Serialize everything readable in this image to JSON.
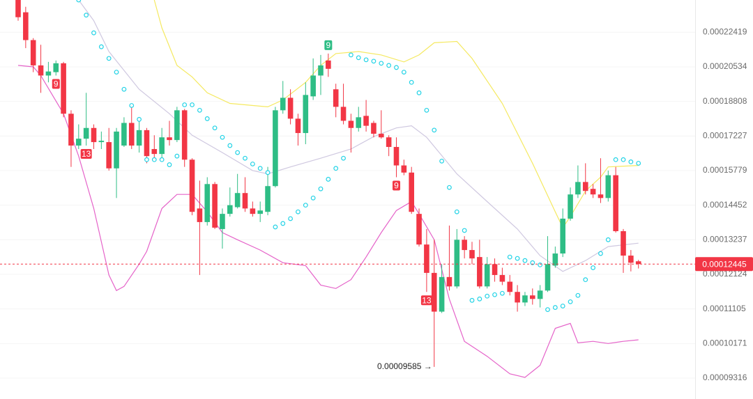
{
  "chart_data": {
    "type": "candlestick",
    "ylim": [
      8.835e-05,
      0.0002433
    ],
    "log_scale": true,
    "grid": true,
    "yticks": [
      0.00022419,
      0.00020534,
      0.00018808,
      0.00017227,
      0.00015779,
      0.00014452,
      0.00013237,
      0.00012124,
      0.00011105,
      0.00010171,
      9.316e-05
    ],
    "up_color": "#2ebd85",
    "down_color": "#f23645",
    "candles": {
      "open": [
        0.0002433,
        0.00023583,
        0.00021976,
        0.00020608,
        0.00020085,
        0.00020258,
        0.00020719,
        0.00018228,
        0.00016813,
        0.00017109,
        0.00017582,
        0.00016961,
        0.00016961,
        0.00015868,
        0.00016813,
        0.00017808,
        0.00016813,
        0.00017485,
        0.00016665,
        0.00016458,
        0.00017168,
        0.0001705,
        0.00018389,
        0.00016222,
        0.00014331,
        0.00013845,
        0.00015248,
        0.00013602,
        0.00014136,
        0.00014379,
        0.00014904,
        0.00014331,
        0.00014136,
        0.00014209,
        0.00015169,
        0.00018389,
        0.00018981,
        0.00018001,
        0.00017356,
        0.0001905,
        0.00020085,
        0.00020866,
        0.00019395,
        0.0001855,
        0.00017905,
        0.00017582,
        0.0001813,
        0.00017808,
        0.00017324,
        0.00017168,
        0.00016754,
        0.00015986,
        0.00015699,
        0.00014136,
        0.00013078,
        0.00012169,
        0.00011029,
        0.00012042,
        0.00011758,
        0.00013237,
        0.00012896,
        0.00012669,
        0.00011758,
        0.00012442,
        0.00012104,
        0.000119,
        0.00011595,
        0.00011288,
        0.00011493,
        0.0001139,
        0.00011635,
        0.00012397,
        0.00012783,
        0.00013966,
        0.00014851,
        0.00015328,
        0.00015063,
        0.00014851,
        0.00014717,
        0.00015593,
        0.00013529,
        0.00012715,
        0.00012533
      ],
      "high": [
        0.0002433,
        0.00023915,
        0.00022086,
        0.00021717,
        0.00020793,
        0.00020866,
        0.00020793,
        0.00018389,
        0.00017743,
        0.00019222,
        0.00017743,
        0.00017421,
        0.00017582,
        0.00017582,
        0.00018066,
        0.00018711,
        0.00018066,
        0.00017582,
        0.00017259,
        0.00017582,
        0.00017905,
        0.0001855,
        0.00018453,
        0.00016281,
        0.00015381,
        0.00015514,
        0.00015328,
        0.00014331,
        0.00015116,
        0.00015646,
        0.00015514,
        0.00014585,
        0.00014585,
        0.00015927,
        0.0001855,
        0.00019809,
        0.00019395,
        0.00018228,
        0.0001974,
        0.00020977,
        0.00021162,
        0.00021236,
        0.00019671,
        0.00019671,
        0.00018228,
        0.0001855,
        0.00018877,
        0.00017905,
        0.00018389,
        0.00017259,
        0.00017168,
        0.00016222,
        0.00015927,
        0.00014331,
        0.00013602,
        0.00013237,
        0.00012442,
        0.00013723,
        0.00013602,
        0.00013359,
        0.00013169,
        0.00013237,
        0.00012669,
        0.00012624,
        0.00012329,
        0.00012104,
        0.00011798,
        0.00011595,
        0.00011697,
        0.00011798,
        0.00013359,
        0.0001301,
        0.00014331,
        0.00015116,
        0.00015986,
        0.00016074,
        0.00015248,
        0.00016281,
        0.00015779,
        0.00015927,
        0.00013602,
        0.00012896,
        0.00012578
      ],
      "low": [
        0.00023085,
        0.00021532,
        0.00020258,
        0.00019222,
        0.0001974,
        0.00020085,
        0.00018066,
        0.00015927,
        0.00016665,
        0.00016813,
        0.00016665,
        0.00016665,
        0.00015779,
        0.00014717,
        0.00016754,
        0.00016665,
        0.00016517,
        0.00016074,
        0.00016222,
        0.00016222,
        0.00016813,
        0.00016961,
        0.00015927,
        0.00014087,
        0.00012104,
        0.00013723,
        0.00013602,
        0.00012942,
        0.00014039,
        0.00014331,
        0.00014209,
        0.00014039,
        0.00013845,
        0.00014087,
        0.00015116,
        0.00018228,
        0.00017743,
        0.00016813,
        0.00016872,
        0.00018877,
        0.00019118,
        0.00020016,
        0.00018066,
        0.00017743,
        0.00016517,
        0.00017421,
        0.00017421,
        0.00017168,
        0.00017109,
        0.00016369,
        0.00015514,
        0.00015593,
        0.00014136,
        0.0001301,
        0.00011595,
        9.585e-05,
        0.00010991,
        0.00011635,
        0.00011697,
        0.00012624,
        0.00012442,
        0.00011697,
        0.00011697,
        0.000119,
        0.00011798,
        0.00011493,
        0.00011029,
        0.00011187,
        0.00011227,
        0.00011146,
        0.00011595,
        0.00012329,
        0.00012669,
        0.00013893,
        0.00014717,
        0.00014851,
        0.00014717,
        0.00014532,
        0.00014585,
        0.0001348,
        0.00012169,
        0.00012215,
        0.00012306
      ],
      "close": [
        0.0002329,
        0.00021976,
        0.00020608,
        0.00020085,
        0.00020292,
        0.00020719,
        0.00018228,
        0.00016813,
        0.00017109,
        0.00017582,
        0.00016961,
        0.0001702,
        0.00015868,
        0.00017421,
        0.00017808,
        0.00016813,
        0.00017485,
        0.00016369,
        0.00016458,
        0.00017168,
        0.0001705,
        0.00018389,
        0.00016222,
        0.00014209,
        0.00013845,
        0.00015248,
        0.0001365,
        0.00014136,
        0.00014452,
        0.00014904,
        0.00014331,
        0.00014136,
        0.00014258,
        0.00015169,
        0.00018389,
        0.00018981,
        0.00018001,
        0.00017356,
        0.00019118,
        0.00020085,
        0.00020608,
        0.0002043,
        0.0001855,
        0.00017905,
        0.00017582,
        0.00018066,
        0.00017679,
        0.00017324,
        0.00017168,
        0.00016754,
        0.00015986,
        0.00015699,
        0.00014209,
        0.00013078,
        0.00012169,
        0.00011029,
        0.00012042,
        0.00011758,
        0.00013237,
        0.00012896,
        0.00012624,
        0.00011758,
        0.00012442,
        0.00012104,
        0.000119,
        0.00011595,
        0.00011288,
        0.00011493,
        0.0001139,
        0.00011635,
        0.00012442,
        0.00012783,
        0.00013966,
        0.00014851,
        0.00015328,
        0.00014983,
        0.00014851,
        0.00014717,
        0.00015593,
        0.00013529,
        0.00012715,
        0.00012487,
        0.00012445
      ]
    },
    "bb_upper": {
      "color": "#f5e960",
      "x": [
        18,
        19,
        21,
        23,
        25,
        28,
        33,
        35,
        38,
        40,
        42,
        45,
        48,
        51,
        53,
        55,
        58,
        60,
        64,
        68,
        71,
        72,
        73,
        75,
        77,
        78,
        82
      ],
      "values": [
        0.0002433,
        0.00022668,
        0.00020608,
        0.00020016,
        0.00019222,
        0.00018711,
        0.0001855,
        0.00018877,
        0.0001974,
        0.00020608,
        0.00021236,
        0.00021347,
        0.00021162,
        0.00020793,
        0.00021162,
        0.00021828,
        0.00021902,
        0.00020977,
        0.00018711,
        0.00016074,
        0.00014209,
        0.0001365,
        0.00014039,
        0.00014983,
        0.00015514,
        0.00015927,
        0.00015986
      ]
    },
    "bb_middle": {
      "color": "#cfc8e0",
      "x": [
        8,
        10,
        12,
        16,
        20,
        23,
        27,
        31,
        33,
        36,
        40,
        44,
        47,
        50,
        52,
        54,
        58,
        62,
        66,
        69,
        72,
        75,
        78,
        82
      ],
      "values": [
        0.0002433,
        0.00023085,
        0.00021347,
        0.00019395,
        0.00018228,
        0.00017259,
        0.00016517,
        0.00015779,
        0.00015646,
        0.00015927,
        0.00016281,
        0.00016665,
        0.00017198,
        0.00017582,
        0.00017679,
        0.00017168,
        0.00015646,
        0.00014585,
        0.00013602,
        0.00012715,
        0.00012215,
        0.00012556,
        0.0001301,
        0.00013124
      ]
    },
    "bb_lower": {
      "color": "#e563c9",
      "x": [
        0,
        2,
        3,
        6,
        8,
        10,
        12,
        13,
        14,
        16,
        17,
        19,
        21,
        23,
        25,
        27,
        29,
        32,
        35,
        38,
        40,
        42,
        44,
        46,
        48,
        50,
        52,
        53,
        55,
        57,
        59,
        62,
        65,
        67,
        69,
        71,
        73,
        74,
        76,
        78,
        80,
        82
      ],
      "values": [
        0.00020608,
        0.00020534,
        0.00020085,
        0.00018228,
        0.00016369,
        0.00014331,
        0.00012104,
        0.00011635,
        0.00011758,
        0.00012442,
        0.00012851,
        0.00014331,
        0.00014851,
        0.00014851,
        0.00014209,
        0.0001348,
        0.00013237,
        0.00012896,
        0.00012487,
        0.00012397,
        0.00011798,
        0.00011697,
        0.00011961,
        0.00012669,
        0.0001348,
        0.00014258,
        0.00014585,
        0.00014136,
        0.00013237,
        0.0001139,
        0.00010228,
        9.846e-05,
        9.419e-05,
        9.333e-05,
        9.624e-05,
        0.00010571,
        0.00010705,
        0.0001019,
        0.00010228,
        0.00010171,
        0.00010228,
        0.00010267
      ]
    },
    "sar": {
      "color": "#22d3e6",
      "values": [
        null,
        null,
        null,
        null,
        null,
        null,
        null,
        null,
        0.0002433,
        0.00023415,
        0.00022382,
        0.00021606,
        0.00020977,
        0.00020258,
        0.00019395,
        0.00018614,
        0.00017969,
        0.00016222,
        0.00016222,
        0.00016222,
        0.00016015,
        0.00016369,
        0.00018646,
        0.00018646,
        0.00018389,
        0.00018001,
        0.00017582,
        0.00017168,
        0.00016813,
        0.00016517,
        0.00016281,
        0.00016045,
        0.00015868,
        0.00015699,
        0.00013674,
        0.00013796,
        0.00013966,
        0.00014209,
        0.00014452,
        0.00014717,
        0.00015063,
        0.00015434,
        0.00015868,
        0.00016281,
        0.00021162,
        0.00021014,
        0.00020903,
        0.0002083,
        0.00020719,
        0.00020608,
        0.00020499,
        0.00020258,
        0.0001974,
        0.00019222,
        0.00018389,
        0.00017485,
        0.00016163,
        0.00015116,
        0.00014209,
        0.00013553,
        0.0001135,
        0.0001139,
        0.00011472,
        0.00011513,
        0.00011554,
        0.00012669,
        0.00012624,
        0.00012556,
        0.00012487,
        0.00012419,
        0.00011086,
        0.00011146,
        0.00011187,
        0.00011309,
        0.00011493,
        0.00011961,
        0.00012329,
        0.00012783,
        0.00013237,
        0.00016222,
        0.00016222,
        0.00016133,
        0.00016074
      ]
    },
    "td_labels": [
      {
        "index": 5,
        "text": "9",
        "color": "#f23645"
      },
      {
        "index": 9,
        "text": "13",
        "color": "#f23645"
      },
      {
        "index": 41,
        "text": "9",
        "color": "#2ebd85"
      },
      {
        "index": 50,
        "text": "9",
        "color": "#f23645"
      },
      {
        "index": 54,
        "text": "13",
        "color": "#f23645"
      }
    ],
    "annotation": "0.00009585 →"
  }
}
